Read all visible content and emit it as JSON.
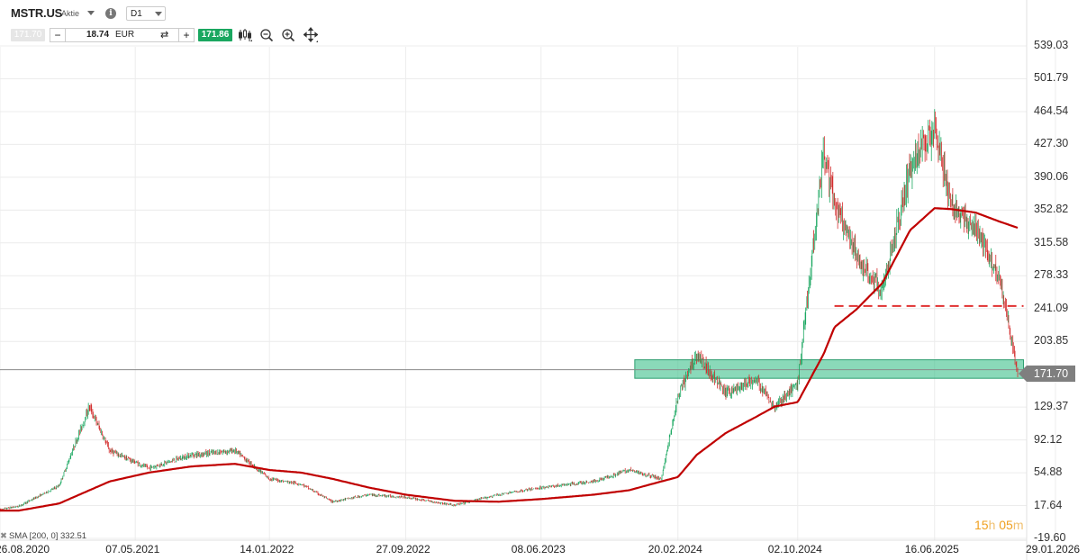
{
  "header": {
    "symbol": "MSTR.US",
    "symbol_type": "Aktie",
    "timeframe": "D1",
    "bid": "171.70",
    "quantity": "18.74",
    "currency": "EUR",
    "ask": "171.86"
  },
  "tools": [
    "chart-type-icon",
    "zoom-out-icon",
    "zoom-in-icon",
    "crosshair-move-icon"
  ],
  "price_axis": [
    "539.03",
    "501.79",
    "464.54",
    "427.30",
    "390.06",
    "352.82",
    "315.58",
    "278.33",
    "241.09",
    "203.85",
    "129.37",
    "92.12",
    "54.88",
    "17.64",
    "-19.60"
  ],
  "current_price": "171.70",
  "date_axis": [
    "26.08.2020",
    "07.05.2021",
    "14.01.2022",
    "27.09.2022",
    "08.06.2023",
    "20.02.2024",
    "02.10.2024",
    "16.06.2025",
    "29.01.2026"
  ],
  "sma_legend": "SMA [200, 0] 332.51",
  "countdown": {
    "hours": "15",
    "h": "h",
    "minutes": "05",
    "m": "m"
  },
  "colors": {
    "candle_up": "#1aa760",
    "candle_down": "#d32f2f",
    "sma": "#c00000",
    "zone": "#3cbf8a"
  },
  "chart_data": {
    "type": "line",
    "x": [
      "2020-08-26",
      "2020-10-01",
      "2020-12-15",
      "2021-02-10",
      "2021-03-20",
      "2021-06-01",
      "2021-08-20",
      "2021-11-10",
      "2022-01-14",
      "2022-03-15",
      "2022-05-12",
      "2022-07-20",
      "2022-09-27",
      "2022-12-28",
      "2023-03-20",
      "2023-06-08",
      "2023-09-15",
      "2023-11-20",
      "2024-01-20",
      "2024-02-20",
      "2024-03-26",
      "2024-05-20",
      "2024-07-15",
      "2024-08-20",
      "2024-10-02",
      "2024-11-20",
      "2024-12-10",
      "2025-01-20",
      "2025-03-10",
      "2025-05-01",
      "2025-06-16",
      "2025-07-16",
      "2025-09-01",
      "2025-10-15",
      "2025-11-20"
    ],
    "series": [
      {
        "values": [
          13,
          17,
          40,
          130,
          80,
          60,
          75,
          80,
          48,
          42,
          22,
          30,
          27,
          18,
          30,
          38,
          45,
          58,
          48,
          140,
          190,
          145,
          160,
          130,
          155,
          420,
          360,
          300,
          260,
          400,
          450,
          360,
          330,
          280,
          165
        ]
      },
      {
        "name": "SMA [200, 0]",
        "values": [
          12,
          12,
          20,
          35,
          45,
          55,
          62,
          65,
          58,
          55,
          48,
          38,
          30,
          23,
          22,
          25,
          30,
          35,
          45,
          50,
          75,
          100,
          118,
          130,
          135,
          190,
          220,
          240,
          270,
          330,
          355,
          354,
          350,
          340,
          332.51
        ]
      }
    ],
    "price_range": [
      -19.6,
      560
    ],
    "yticks": [
      539.03,
      501.79,
      464.54,
      427.3,
      390.06,
      352.82,
      315.58,
      278.33,
      241.09,
      203.85,
      129.37,
      92.12,
      54.88,
      17.64,
      -19.6
    ],
    "horizontal_lines": [
      {
        "value": 171.7,
        "style": "solid-gray"
      },
      {
        "value": 244,
        "style": "dashed-red"
      }
    ],
    "zones": [
      {
        "from": 162,
        "to": 183,
        "start": "2023-12-01",
        "end": "2025-11-30"
      }
    ],
    "grid": true
  }
}
